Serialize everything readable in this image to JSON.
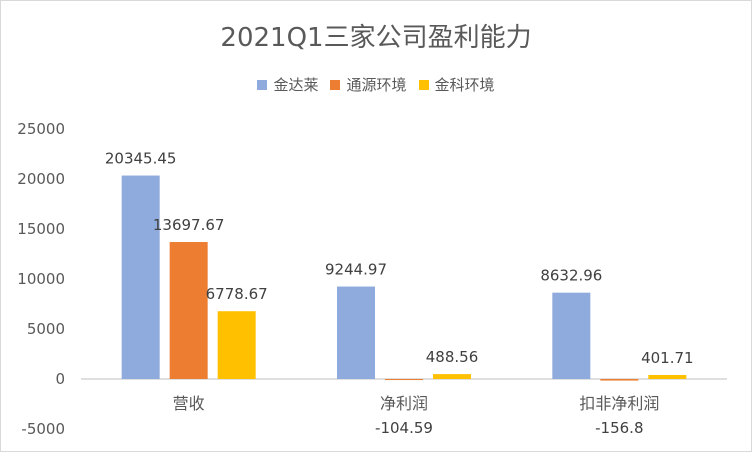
{
  "chart_data": {
    "type": "bar",
    "title": "2021Q1三家公司盈利能力",
    "categories": [
      "营收",
      "净利润",
      "扣非净利润"
    ],
    "series": [
      {
        "name": "金达莱",
        "values": [
          20345.45,
          9244.97,
          8632.96
        ],
        "labels": [
          "20345.45",
          "9244.97",
          "8632.96"
        ],
        "color": "#8FAADC"
      },
      {
        "name": "通源环境",
        "values": [
          13697.67,
          -104.59,
          -156.8
        ],
        "labels": [
          "13697.67",
          "-104.59",
          "-156.8"
        ],
        "color": "#ED7D31"
      },
      {
        "name": "金科环境",
        "values": [
          6778.67,
          488.56,
          401.71
        ],
        "labels": [
          "6778.67",
          "488.56",
          "401.71"
        ],
        "color": "#FFC000"
      }
    ],
    "ylim": [
      -5000,
      25000
    ],
    "yticks": [
      25000,
      20000,
      15000,
      10000,
      5000,
      0,
      -5000
    ],
    "grid": false,
    "legend_position": "top"
  }
}
